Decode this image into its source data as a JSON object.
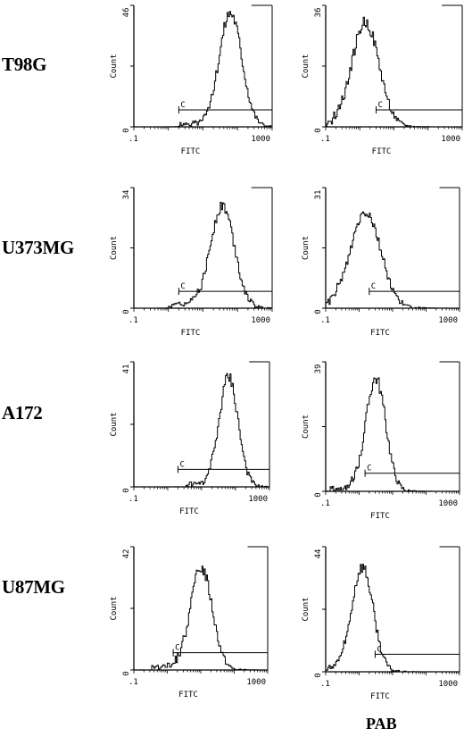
{
  "chart_data": [
    {
      "type": "histogram",
      "row": "T98G",
      "panel": "left",
      "xlabel": "FITC",
      "ylabel": "Count",
      "xscale": "log",
      "xlim": [
        0.1,
        1000
      ],
      "xticks": [
        ".1",
        "1000"
      ],
      "ylim": [
        0,
        46
      ],
      "yticks": [
        "0",
        "46"
      ],
      "gate": {
        "label": "C",
        "range": [
          2,
          1000
        ]
      },
      "peak_x": 60,
      "spread": 0.33,
      "peak_count": 43
    },
    {
      "type": "histogram",
      "row": "T98G",
      "panel": "right",
      "xlabel": "FITC",
      "ylabel": "Count",
      "xscale": "log",
      "xlim": [
        0.1,
        1000
      ],
      "xticks": [
        ".1",
        "1000"
      ],
      "ylim": [
        0,
        36
      ],
      "yticks": [
        "0",
        "36"
      ],
      "gate": {
        "label": "C",
        "range": [
          3,
          1000
        ]
      },
      "peak_x": 1.4,
      "spread": 0.4,
      "peak_count": 31
    },
    {
      "type": "histogram",
      "row": "U373MG",
      "panel": "left",
      "xlabel": "FITC",
      "ylabel": "Count",
      "xscale": "log",
      "xlim": [
        0.1,
        1000
      ],
      "xticks": [
        ".1",
        "1000"
      ],
      "ylim": [
        0,
        34
      ],
      "yticks": [
        "0",
        "34"
      ],
      "gate": {
        "label": "C",
        "range": [
          2,
          1000
        ]
      },
      "peak_x": 35,
      "spread": 0.35,
      "peak_count": 29
    },
    {
      "type": "histogram",
      "row": "U373MG",
      "panel": "right",
      "xlabel": "FITC",
      "ylabel": "Count",
      "xscale": "log",
      "xlim": [
        0.1,
        1000
      ],
      "xticks": [
        ".1",
        "1000"
      ],
      "ylim": [
        0,
        31
      ],
      "yticks": [
        "0",
        "31"
      ],
      "gate": {
        "label": "C",
        "range": [
          2,
          1000
        ]
      },
      "peak_x": 1.5,
      "spread": 0.45,
      "peak_count": 25
    },
    {
      "type": "histogram",
      "row": "A172",
      "panel": "left",
      "xlabel": "FITC",
      "ylabel": "Count",
      "xscale": "log",
      "xlim": [
        0.1,
        1000
      ],
      "xticks": [
        ".1",
        "1000"
      ],
      "ylim": [
        0,
        41
      ],
      "yticks": [
        "0",
        "41"
      ],
      "gate": {
        "label": "C",
        "range": [
          2,
          1000
        ]
      },
      "peak_x": 60,
      "spread": 0.28,
      "peak_count": 36
    },
    {
      "type": "histogram",
      "row": "A172",
      "panel": "right",
      "xlabel": "FITC",
      "ylabel": "Count",
      "xscale": "log",
      "xlim": [
        0.1,
        1000
      ],
      "xticks": [
        ".1",
        "1000"
      ],
      "ylim": [
        0,
        39
      ],
      "yticks": [
        "0",
        "39"
      ],
      "gate": {
        "label": "C",
        "range": [
          1.5,
          1000
        ]
      },
      "peak_x": 3,
      "spread": 0.3,
      "peak_count": 34
    },
    {
      "type": "histogram",
      "row": "U87MG",
      "panel": "left",
      "xlabel": "FITC",
      "ylabel": "Count",
      "xscale": "log",
      "xlim": [
        0.1,
        1000
      ],
      "xticks": [
        ".1",
        "1000"
      ],
      "ylim": [
        0,
        42
      ],
      "yticks": [
        "0",
        "42"
      ],
      "gate": {
        "label": "C",
        "range": [
          1.5,
          1000
        ]
      },
      "peak_x": 10,
      "spread": 0.33,
      "peak_count": 35
    },
    {
      "type": "histogram",
      "row": "U87MG",
      "panel": "right",
      "xlabel": "FITC",
      "ylabel": "Count",
      "xscale": "log",
      "xlim": [
        0.1,
        1000
      ],
      "xticks": [
        ".1",
        "1000"
      ],
      "ylim": [
        0,
        44
      ],
      "yticks": [
        "0",
        "44"
      ],
      "gate": {
        "label": "C",
        "range": [
          3,
          1000
        ]
      },
      "peak_x": 1.2,
      "spread": 0.32,
      "peak_count": 37
    }
  ],
  "rows": [
    "T98G",
    "U373MG",
    "A172",
    "U87MG"
  ],
  "column_caption": "PAB"
}
